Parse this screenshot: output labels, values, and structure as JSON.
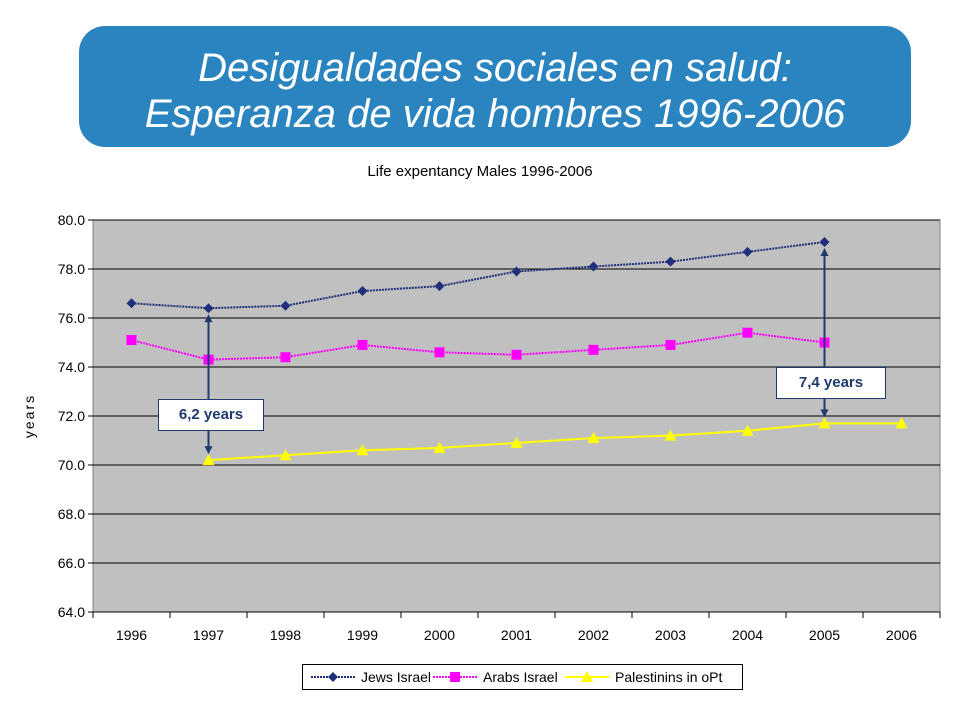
{
  "banner": {
    "line1": "Desigualdades sociales en salud:",
    "line2": "Esperanza de vida hombres 1996-2006"
  },
  "chart_data": {
    "type": "line",
    "title": "Life expentancy Males 1996-2006",
    "ylabel": "years",
    "xlabel": "",
    "categories": [
      "1996",
      "1997",
      "1998",
      "1999",
      "2000",
      "2001",
      "2002",
      "2003",
      "2004",
      "2005",
      "2006"
    ],
    "ylim": [
      64.0,
      80.0
    ],
    "yticks": [
      "64.0",
      "66.0",
      "68.0",
      "70.0",
      "72.0",
      "74.0",
      "76.0",
      "78.0",
      "80.0"
    ],
    "grid": true,
    "legend_position": "bottom",
    "series": [
      {
        "name": "Jews Israel",
        "color": "#1f2f7a",
        "marker": "diamond",
        "values": [
          76.6,
          76.4,
          76.5,
          77.1,
          77.3,
          77.9,
          78.1,
          78.3,
          78.7,
          79.1,
          null
        ]
      },
      {
        "name": "Arabs Israel",
        "color": "#ff00ff",
        "marker": "square",
        "values": [
          75.1,
          74.3,
          74.4,
          74.9,
          74.6,
          74.5,
          74.7,
          74.9,
          75.4,
          75.0,
          null
        ]
      },
      {
        "name": "Palestinins in oPt",
        "color": "#ffff00",
        "marker": "triangle",
        "values": [
          null,
          70.2,
          70.4,
          70.6,
          70.7,
          70.9,
          71.1,
          71.2,
          71.4,
          71.7,
          71.7
        ]
      }
    ],
    "annotations": [
      {
        "label": "6,2 years",
        "category": "1997",
        "from": 76.4,
        "to": 70.2
      },
      {
        "label": "7,4 years",
        "category": "2005",
        "from": 79.1,
        "to": 71.7
      }
    ],
    "plot_color": "#c0c0c0"
  }
}
